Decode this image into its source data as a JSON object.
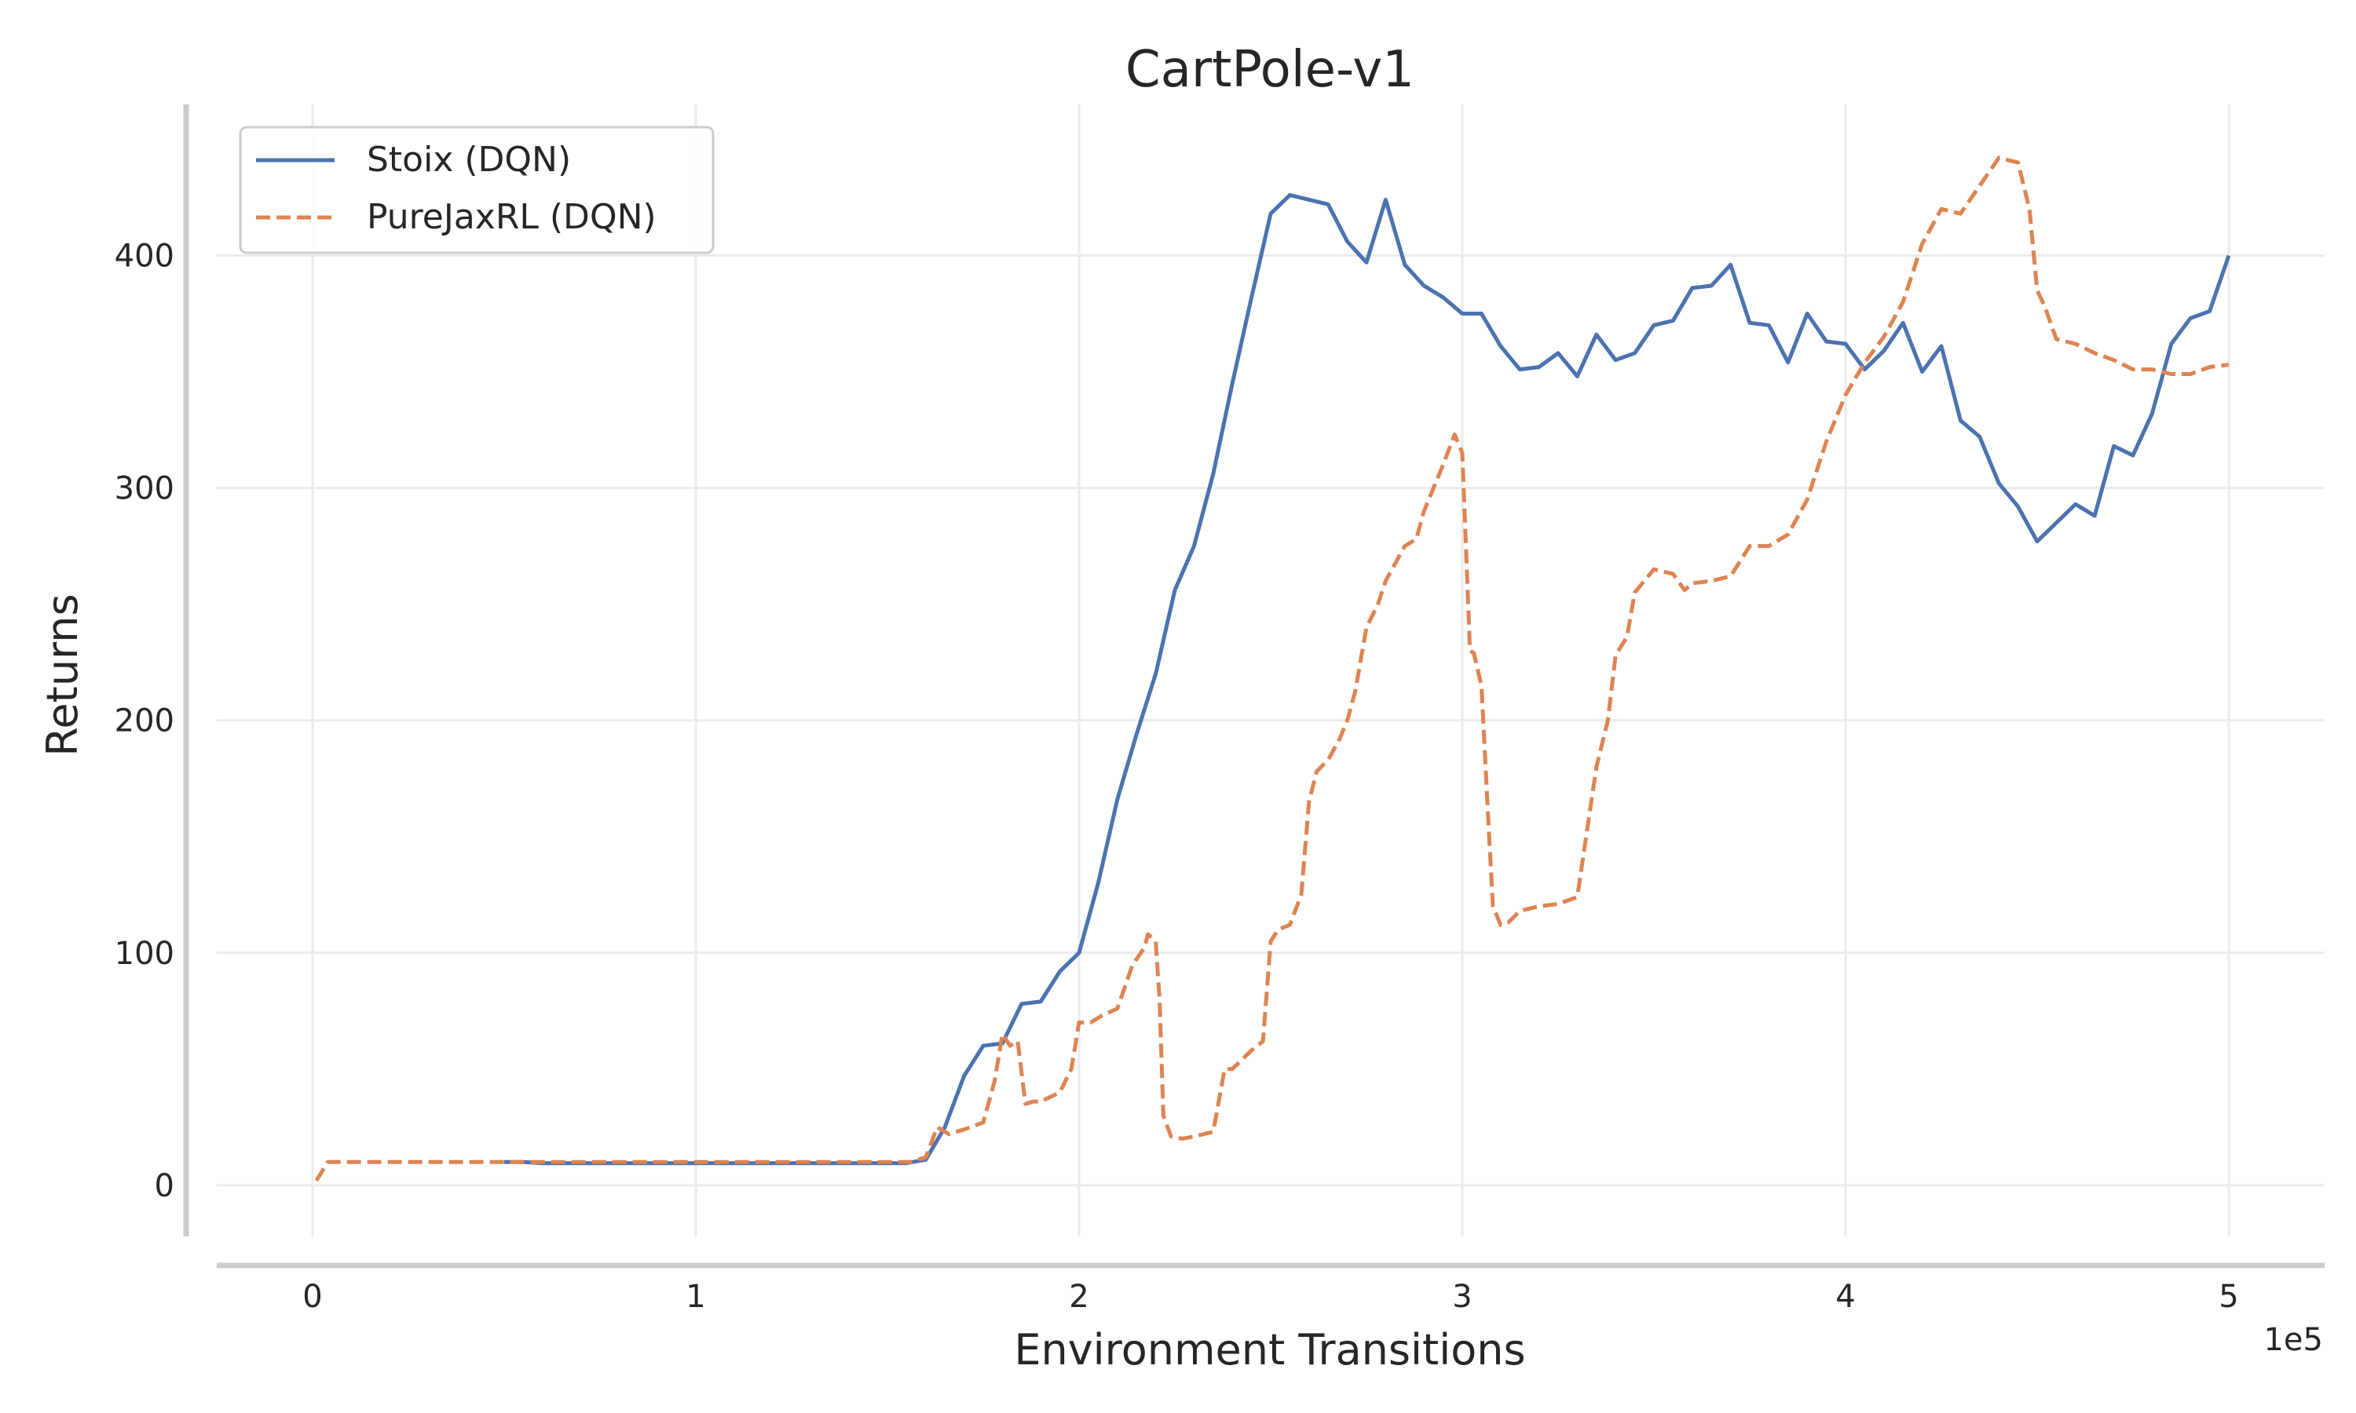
{
  "chart_data": {
    "type": "line",
    "title": "CartPole-v1",
    "xlabel": "Environment Transitions",
    "ylabel": "Returns",
    "x_offset_label": "1e5",
    "xlim": [
      -0.25,
      5.25
    ],
    "ylim": [
      -22,
      465
    ],
    "x_ticks": [
      0,
      1,
      2,
      3,
      4,
      5
    ],
    "x_tick_labels": [
      "0",
      "1",
      "2",
      "3",
      "4",
      "5"
    ],
    "y_ticks": [
      0,
      100,
      200,
      300,
      400
    ],
    "y_tick_labels": [
      "0",
      "100",
      "200",
      "300",
      "400"
    ],
    "grid": true,
    "legend_position": "top-left",
    "series": [
      {
        "name": "Stoix (DQN)",
        "color": "#4c72b0",
        "style": "solid",
        "x": [
          0.5,
          0.55,
          0.6,
          0.65,
          0.7,
          0.75,
          0.8,
          0.85,
          0.9,
          0.95,
          1.0,
          1.05,
          1.1,
          1.15,
          1.2,
          1.25,
          1.3,
          1.35,
          1.4,
          1.45,
          1.5,
          1.55,
          1.6,
          1.65,
          1.7,
          1.75,
          1.8,
          1.85,
          1.9,
          1.95,
          2.0,
          2.05,
          2.1,
          2.15,
          2.2,
          2.25,
          2.3,
          2.35,
          2.4,
          2.45,
          2.5,
          2.55,
          2.6,
          2.65,
          2.7,
          2.75,
          2.8,
          2.85,
          2.9,
          2.95,
          3.0,
          3.05,
          3.1,
          3.15,
          3.2,
          3.25,
          3.3,
          3.35,
          3.4,
          3.45,
          3.5,
          3.55,
          3.6,
          3.65,
          3.7,
          3.75,
          3.8,
          3.85,
          3.9,
          3.95,
          4.0,
          4.05,
          4.1,
          4.15,
          4.2,
          4.25,
          4.3,
          4.35,
          4.4,
          4.45,
          4.5,
          4.55,
          4.6,
          4.65,
          4.7,
          4.75,
          4.8,
          4.85,
          4.9,
          4.95,
          5.0
        ],
        "y": [
          10,
          10,
          9.5,
          9.5,
          9.5,
          9.5,
          9.5,
          9.5,
          9.5,
          9.5,
          9.5,
          9.5,
          9.5,
          9.5,
          9.5,
          9.5,
          9.5,
          9.5,
          9.5,
          9.5,
          9.5,
          9.5,
          11,
          25,
          47,
          60,
          61,
          78,
          79,
          92,
          100,
          130,
          166,
          194,
          220,
          256,
          275,
          306,
          345,
          382,
          418,
          426,
          424,
          422,
          406,
          397,
          424,
          396,
          387,
          382,
          375,
          375,
          361,
          351,
          352,
          358,
          348,
          366,
          355,
          358,
          370,
          372,
          386,
          387,
          396,
          371,
          370,
          354,
          375,
          363,
          362,
          351,
          359,
          371,
          350,
          361,
          329,
          322,
          302,
          292,
          277,
          285,
          293,
          288,
          318,
          314,
          332,
          362,
          373,
          376,
          400
        ]
      },
      {
        "name": "PureJaxRL (DQN)",
        "color": "#dd8452",
        "style": "dashed",
        "x": [
          0.01,
          0.04,
          0.1,
          0.2,
          0.5,
          0.8,
          1.0,
          1.3,
          1.5,
          1.56,
          1.6,
          1.63,
          1.66,
          1.7,
          1.75,
          1.78,
          1.8,
          1.82,
          1.84,
          1.86,
          1.88,
          1.9,
          1.95,
          1.98,
          2.0,
          2.03,
          2.06,
          2.1,
          2.14,
          2.17,
          2.18,
          2.2,
          2.21,
          2.22,
          2.24,
          2.27,
          2.3,
          2.35,
          2.38,
          2.4,
          2.45,
          2.48,
          2.5,
          2.52,
          2.55,
          2.58,
          2.6,
          2.62,
          2.65,
          2.68,
          2.7,
          2.72,
          2.75,
          2.78,
          2.8,
          2.85,
          2.88,
          2.9,
          2.95,
          2.98,
          3.0,
          3.02,
          3.03,
          3.05,
          3.07,
          3.08,
          3.1,
          3.12,
          3.15,
          3.2,
          3.25,
          3.3,
          3.35,
          3.38,
          3.4,
          3.43,
          3.45,
          3.5,
          3.55,
          3.58,
          3.6,
          3.65,
          3.7,
          3.75,
          3.8,
          3.85,
          3.9,
          3.95,
          4.0,
          4.05,
          4.1,
          4.15,
          4.2,
          4.25,
          4.3,
          4.35,
          4.4,
          4.45,
          4.48,
          4.5,
          4.52,
          4.55,
          4.6,
          4.65,
          4.7,
          4.75,
          4.8,
          4.85,
          4.9,
          4.95,
          5.0
        ],
        "y": [
          2,
          10,
          10,
          10,
          10,
          10,
          10,
          10,
          10,
          10,
          12,
          25,
          22,
          24,
          27,
          45,
          65,
          60,
          62,
          35,
          36,
          36,
          40,
          50,
          70,
          70,
          73,
          76,
          95,
          102,
          108,
          105,
          80,
          30,
          21,
          20,
          21,
          23,
          50,
          50,
          58,
          62,
          105,
          110,
          112,
          125,
          165,
          178,
          183,
          192,
          200,
          212,
          240,
          250,
          260,
          275,
          278,
          290,
          310,
          323,
          315,
          230,
          229,
          215,
          150,
          120,
          112,
          113,
          118,
          120,
          121,
          124,
          180,
          200,
          228,
          236,
          255,
          265,
          263,
          256,
          259,
          260,
          262,
          275,
          275,
          280,
          295,
          320,
          340,
          354,
          365,
          380,
          405,
          420,
          418,
          430,
          442,
          440,
          420,
          385,
          378,
          364,
          362,
          358,
          355,
          351,
          351,
          349,
          349,
          352,
          353
        ]
      }
    ]
  }
}
